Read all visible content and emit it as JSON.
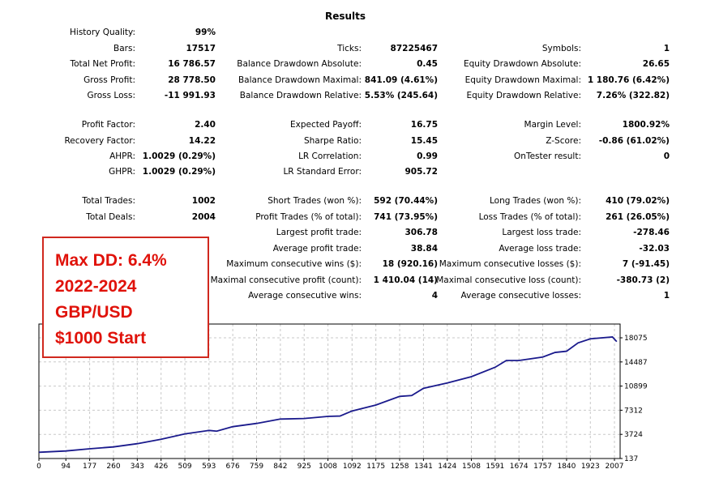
{
  "title": "Results",
  "col1": [
    {
      "label": "History Quality:",
      "value": "99%",
      "row": 0
    },
    {
      "label": "Bars:",
      "value": "17517",
      "row": 1
    },
    {
      "label": "Total Net Profit:",
      "value": "16 786.57",
      "row": 2
    },
    {
      "label": "Gross Profit:",
      "value": "28 778.50",
      "row": 3
    },
    {
      "label": "Gross Loss:",
      "value": "-11 991.93",
      "row": 4
    },
    {
      "label": "Profit Factor:",
      "value": "2.40",
      "row": 5
    },
    {
      "label": "Recovery Factor:",
      "value": "14.22",
      "row": 6
    },
    {
      "label": "AHPR:",
      "value": "1.0029 (0.29%)",
      "row": 7
    },
    {
      "label": "GHPR:",
      "value": "1.0029 (0.29%)",
      "row": 8
    },
    {
      "label": "Total Trades:",
      "value": "1002",
      "row": 9
    },
    {
      "label": "Total Deals:",
      "value": "2004",
      "row": 10
    }
  ],
  "col2": [
    {
      "label": "Ticks:",
      "value": "87225467",
      "row": 1
    },
    {
      "label": "Balance Drawdown Absolute:",
      "value": "0.45",
      "row": 2
    },
    {
      "label": "Balance Drawdown Maximal:",
      "value": "841.09 (4.61%)",
      "row": 3
    },
    {
      "label": "Balance Drawdown Relative:",
      "value": "5.53% (245.64)",
      "row": 4
    },
    {
      "label": "Expected Payoff:",
      "value": "16.75",
      "row": 5
    },
    {
      "label": "Sharpe Ratio:",
      "value": "15.45",
      "row": 6
    },
    {
      "label": "LR Correlation:",
      "value": "0.99",
      "row": 7
    },
    {
      "label": "LR Standard Error:",
      "value": "905.72",
      "row": 8
    },
    {
      "label": "Short Trades (won %):",
      "value": "592 (70.44%)",
      "row": 9
    },
    {
      "label": "Profit Trades (% of total):",
      "value": "741 (73.95%)",
      "row": 10
    },
    {
      "label": "Largest profit trade:",
      "value": "306.78",
      "row": 11
    },
    {
      "label": "Average profit trade:",
      "value": "38.84",
      "row": 12
    },
    {
      "label": "Maximum consecutive wins ($):",
      "value": "18 (920.16)",
      "row": 13
    },
    {
      "label": "Maximal consecutive profit (count):",
      "value": "1 410.04 (14)",
      "row": 14
    },
    {
      "label": "Average consecutive wins:",
      "value": "4",
      "row": 15
    }
  ],
  "col3": [
    {
      "label": "Symbols:",
      "value": "1",
      "row": 1
    },
    {
      "label": "Equity Drawdown Absolute:",
      "value": "26.65",
      "row": 2
    },
    {
      "label": "Equity Drawdown Maximal:",
      "value": "1 180.76 (6.42%)",
      "row": 3
    },
    {
      "label": "Equity Drawdown Relative:",
      "value": "7.26% (322.82)",
      "row": 4
    },
    {
      "label": "Margin Level:",
      "value": "1800.92%",
      "row": 5
    },
    {
      "label": "Z-Score:",
      "value": "-0.86 (61.02%)",
      "row": 6
    },
    {
      "label": "OnTester result:",
      "value": "0",
      "row": 7
    },
    {
      "label": "Long Trades (won %):",
      "value": "410 (79.02%)",
      "row": 9
    },
    {
      "label": "Loss Trades (% of total):",
      "value": "261 (26.05%)",
      "row": 10
    },
    {
      "label": "Largest loss trade:",
      "value": "-278.46",
      "row": 11
    },
    {
      "label": "Average loss trade:",
      "value": "-32.03",
      "row": 12
    },
    {
      "label": "Maximum consecutive losses ($):",
      "value": "7 (-91.45)",
      "row": 13
    },
    {
      "label": "Maximal consecutive loss (count):",
      "value": "-380.73 (2)",
      "row": 14
    },
    {
      "label": "Average consecutive losses:",
      "value": "1",
      "row": 15
    }
  ],
  "note": [
    "Max DD: 6.4%",
    "2022-2024",
    "GBP/USD",
    "$1000 Start"
  ],
  "note_color": "#e0120a",
  "chart_data": {
    "type": "line",
    "x_ticks": [
      "0",
      "94",
      "177",
      "260",
      "343",
      "426",
      "509",
      "593",
      "676",
      "759",
      "842",
      "925",
      "1008",
      "1092",
      "1175",
      "1258",
      "1341",
      "1424",
      "1508",
      "1591",
      "1674",
      "1757",
      "1840",
      "1923",
      "2007"
    ],
    "y_ticks": [
      "137",
      "3724",
      "7312",
      "10899",
      "14487",
      "18075"
    ],
    "grid": true,
    "line_color": "#1a1a8c",
    "series": [
      {
        "x": [
          0,
          94,
          177,
          260,
          343,
          426,
          509,
          593,
          620,
          676,
          759,
          842,
          925,
          1008,
          1050,
          1092,
          1175,
          1258,
          1300,
          1341,
          1424,
          1508,
          1591,
          1630,
          1674,
          1757,
          1800,
          1840,
          1880,
          1923,
          2000,
          2015
        ],
        "y": [
          1064,
          1257,
          1582,
          1860,
          2340,
          2990,
          3790,
          4310,
          4200,
          4870,
          5350,
          6000,
          6080,
          6400,
          6450,
          7200,
          8080,
          9370,
          9500,
          10570,
          11370,
          12300,
          13700,
          14700,
          14700,
          15220,
          15900,
          16080,
          17320,
          17920,
          18200,
          17510
        ]
      }
    ]
  }
}
